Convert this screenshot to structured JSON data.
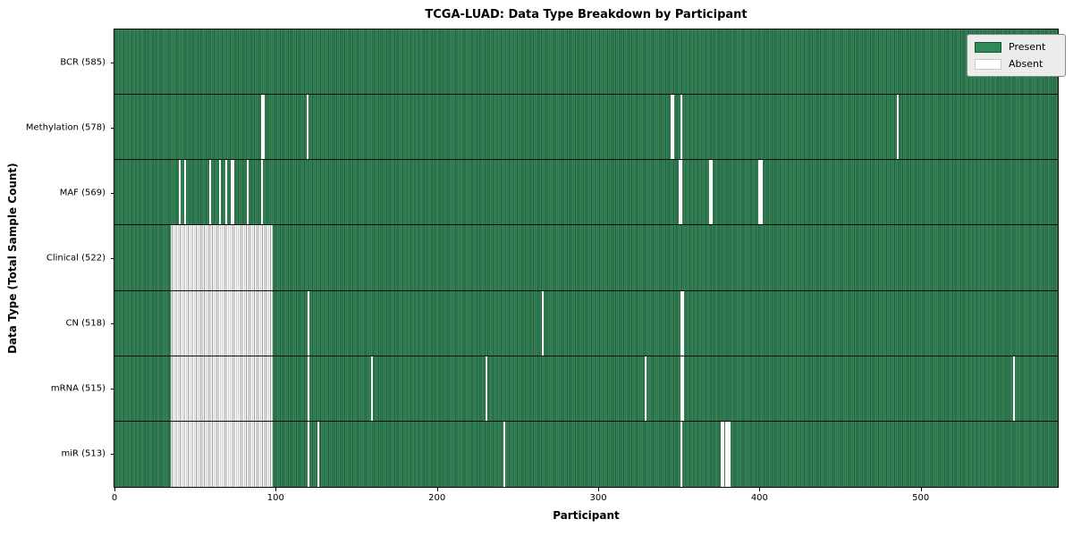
{
  "title": "TCGA-LUAD: Data Type Breakdown by Participant",
  "legend": {
    "present_label": "Present",
    "absent_label": "Absent"
  },
  "colors": {
    "present": "#2e8b57",
    "present_stripe_dark": "#1f5c3a",
    "absent": "#ffffff",
    "absent_stripe_gray": "#9e9e9e",
    "legend_background": "#eaede9"
  },
  "chart_data": {
    "type": "heatmap",
    "title": "TCGA-LUAD: Data Type Breakdown by Participant",
    "xlabel": "Participant",
    "ylabel": "Data Type (Total Sample Count)",
    "legend_entries": [
      "Present",
      "Absent"
    ],
    "legend_position": "upper right",
    "n_participants": 585,
    "x_axis": {
      "ticks": [
        0,
        100,
        200,
        300,
        400,
        500
      ],
      "range": [
        0,
        585
      ]
    },
    "cell_states": {
      "present": "green",
      "absent": "white"
    },
    "rows": [
      {
        "label": "BCR (585)",
        "data_type": "BCR",
        "present_count": 585,
        "absent_ranges": [],
        "absent_singles": []
      },
      {
        "label": "Methylation (578)",
        "data_type": "Methylation",
        "present_count": 578,
        "absent_ranges": [],
        "absent_singles": [
          91,
          92,
          119,
          345,
          346,
          351,
          485
        ]
      },
      {
        "label": "MAF (569)",
        "data_type": "MAF",
        "present_count": 569,
        "absent_ranges": [],
        "absent_singles": [
          40,
          43,
          59,
          65,
          69,
          72,
          73,
          82,
          91,
          350,
          351,
          369,
          370,
          399,
          400,
          401
        ]
      },
      {
        "label": "Clinical (522)",
        "data_type": "Clinical",
        "present_count": 522,
        "absent_ranges": [
          [
            35,
            97
          ]
        ],
        "absent_singles": []
      },
      {
        "label": "CN (518)",
        "data_type": "CN",
        "present_count": 518,
        "absent_ranges": [
          [
            35,
            97
          ]
        ],
        "absent_singles": [
          120,
          265,
          351,
          352
        ]
      },
      {
        "label": "mRNA (515)",
        "data_type": "mRNA",
        "present_count": 515,
        "absent_ranges": [
          [
            35,
            97
          ]
        ],
        "absent_singles": [
          120,
          159,
          230,
          329,
          351,
          352,
          557
        ]
      },
      {
        "label": "miR (513)",
        "data_type": "miR",
        "present_count": 513,
        "absent_ranges": [
          [
            35,
            97
          ]
        ],
        "absent_singles": [
          120,
          126,
          241,
          351,
          376,
          377,
          379,
          380,
          381
        ]
      }
    ]
  }
}
